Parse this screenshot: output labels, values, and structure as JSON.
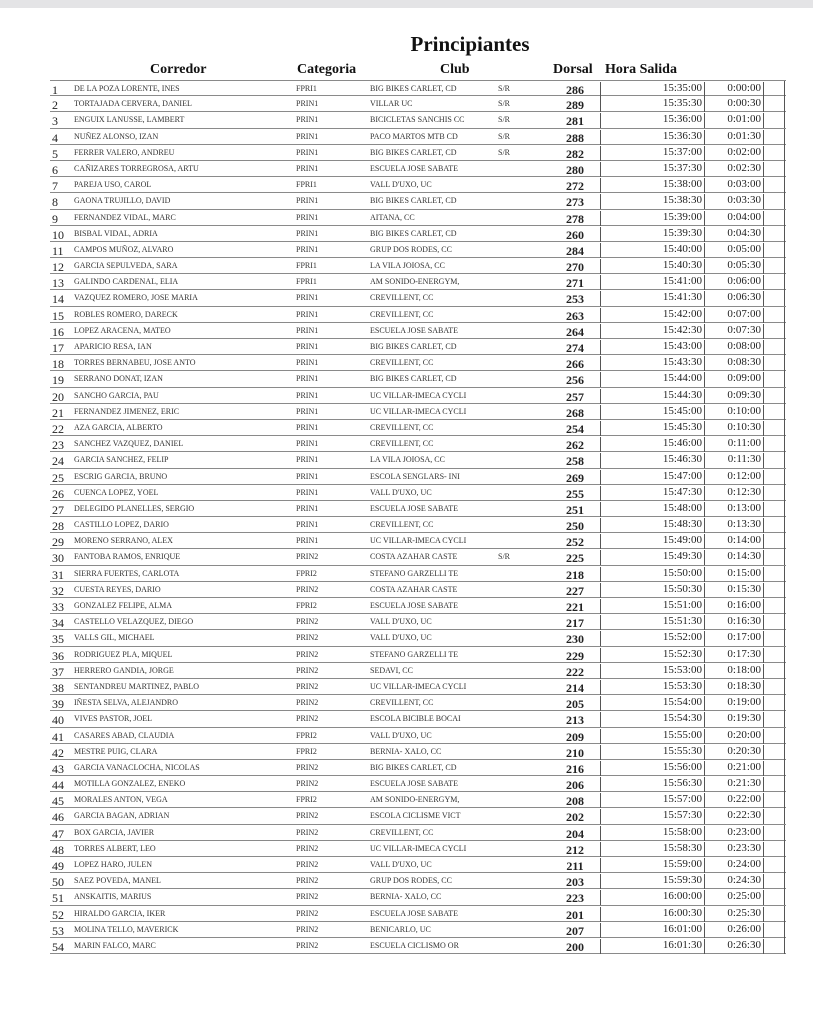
{
  "title": "Principiantes",
  "headers": {
    "corredor": "Corredor",
    "categoria": "Categoria",
    "club": "Club",
    "dorsal": "Dorsal",
    "hora_salida": "Hora Salida"
  },
  "rows": [
    [
      "1",
      "DE LA POZA LORENTE, INES",
      "FPRI1",
      "BIG BIKES CARLET, CD",
      "S/R",
      "286",
      "15:35:00",
      "0:00:00"
    ],
    [
      "2",
      "TORTAJADA CERVERA, DANIEL",
      "PRIN1",
      "VILLAR UC",
      "S/R",
      "289",
      "15:35:30",
      "0:00:30"
    ],
    [
      "3",
      "ENGUIX LANUSSE, LAMBERT",
      "PRIN1",
      "BICICLETAS SANCHIS CC",
      "S/R",
      "281",
      "15:36:00",
      "0:01:00"
    ],
    [
      "4",
      "NUÑEZ ALONSO, IZAN",
      "PRIN1",
      "PACO MARTOS MTB CD",
      "S/R",
      "288",
      "15:36:30",
      "0:01:30"
    ],
    [
      "5",
      "FERRER VALERO, ANDREU",
      "PRIN1",
      "BIG BIKES CARLET, CD",
      "S/R",
      "282",
      "15:37:00",
      "0:02:00"
    ],
    [
      "6",
      "CAÑIZARES TORREGROSA, ARTU",
      "PRIN1",
      "ESCUELA JOSE SABATE",
      "",
      "280",
      "15:37:30",
      "0:02:30"
    ],
    [
      "7",
      "PAREJA USO, CAROL",
      "FPRI1",
      "VALL D'UXO, UC",
      "",
      "272",
      "15:38:00",
      "0:03:00"
    ],
    [
      "8",
      "GAONA TRUJILLO, DAVID",
      "PRIN1",
      "BIG BIKES CARLET, CD",
      "",
      "273",
      "15:38:30",
      "0:03:30"
    ],
    [
      "9",
      "FERNANDEZ VIDAL, MARC",
      "PRIN1",
      "AITANA, CC",
      "",
      "278",
      "15:39:00",
      "0:04:00"
    ],
    [
      "10",
      "BISBAL VIDAL, ADRIA",
      "PRIN1",
      "BIG BIKES CARLET, CD",
      "",
      "260",
      "15:39:30",
      "0:04:30"
    ],
    [
      "11",
      "CAMPOS MUÑOZ, ALVARO",
      "PRIN1",
      "GRUP DOS RODES, CC",
      "",
      "284",
      "15:40:00",
      "0:05:00"
    ],
    [
      "12",
      "GARCIA SEPULVEDA, SARA",
      "FPRI1",
      "LA VILA JOIOSA, CC",
      "",
      "270",
      "15:40:30",
      "0:05:30"
    ],
    [
      "13",
      "GALINDO CARDENAL, ELIA",
      "FPRI1",
      "AM SONIDO-ENERGYM,",
      "",
      "271",
      "15:41:00",
      "0:06:00"
    ],
    [
      "14",
      "VAZQUEZ ROMERO, JOSE MARIA",
      "PRIN1",
      "CREVILLENT, CC",
      "",
      "253",
      "15:41:30",
      "0:06:30"
    ],
    [
      "15",
      "ROBLES ROMERO, DARECK",
      "PRIN1",
      "CREVILLENT, CC",
      "",
      "263",
      "15:42:00",
      "0:07:00"
    ],
    [
      "16",
      "LOPEZ ARACENA, MATEO",
      "PRIN1",
      "ESCUELA JOSE SABATE",
      "",
      "264",
      "15:42:30",
      "0:07:30"
    ],
    [
      "17",
      "APARICIO RESA, IAN",
      "PRIN1",
      "BIG BIKES CARLET, CD",
      "",
      "274",
      "15:43:00",
      "0:08:00"
    ],
    [
      "18",
      "TORRES BERNABEU, JOSE ANTO",
      "PRIN1",
      "CREVILLENT, CC",
      "",
      "266",
      "15:43:30",
      "0:08:30"
    ],
    [
      "19",
      "SERRANO DONAT, IZAN",
      "PRIN1",
      "BIG BIKES CARLET, CD",
      "",
      "256",
      "15:44:00",
      "0:09:00"
    ],
    [
      "20",
      "SANCHO GARCIA, PAU",
      "PRIN1",
      "UC VILLAR-IMECA CYCLI",
      "",
      "257",
      "15:44:30",
      "0:09:30"
    ],
    [
      "21",
      "FERNANDEZ JIMENEZ, ERIC",
      "PRIN1",
      "UC VILLAR-IMECA CYCLI",
      "",
      "268",
      "15:45:00",
      "0:10:00"
    ],
    [
      "22",
      "AZA GARCIA, ALBERTO",
      "PRIN1",
      "CREVILLENT, CC",
      "",
      "254",
      "15:45:30",
      "0:10:30"
    ],
    [
      "23",
      "SANCHEZ VAZQUEZ, DANIEL",
      "PRIN1",
      "CREVILLENT, CC",
      "",
      "262",
      "15:46:00",
      "0:11:00"
    ],
    [
      "24",
      "GARCIA SANCHEZ, FELIP",
      "PRIN1",
      "LA VILA JOIOSA, CC",
      "",
      "258",
      "15:46:30",
      "0:11:30"
    ],
    [
      "25",
      "ESCRIG GARCIA, BRUNO",
      "PRIN1",
      "ESCOLA SENGLARS- INI",
      "",
      "269",
      "15:47:00",
      "0:12:00"
    ],
    [
      "26",
      "CUENCA LOPEZ, YOEL",
      "PRIN1",
      "VALL D'UXO, UC",
      "",
      "255",
      "15:47:30",
      "0:12:30"
    ],
    [
      "27",
      "DELEGIDO PLANELLES, SERGIO",
      "PRIN1",
      "ESCUELA JOSE SABATE",
      "",
      "251",
      "15:48:00",
      "0:13:00"
    ],
    [
      "28",
      "CASTILLO LOPEZ, DARIO",
      "PRIN1",
      "CREVILLENT, CC",
      "",
      "250",
      "15:48:30",
      "0:13:30"
    ],
    [
      "29",
      "MORENO SERRANO, ALEX",
      "PRIN1",
      "UC VILLAR-IMECA CYCLI",
      "",
      "252",
      "15:49:00",
      "0:14:00"
    ],
    [
      "30",
      "FANTOBA RAMOS, ENRIQUE",
      "PRIN2",
      "COSTA AZAHAR CASTE",
      "S/R",
      "225",
      "15:49:30",
      "0:14:30"
    ],
    [
      "31",
      "SIERRA FUERTES, CARLOTA",
      "FPRI2",
      "STEFANO GARZELLI TE",
      "",
      "218",
      "15:50:00",
      "0:15:00"
    ],
    [
      "32",
      "CUESTA REYES, DARIO",
      "PRIN2",
      "COSTA AZAHAR CASTE",
      "",
      "227",
      "15:50:30",
      "0:15:30"
    ],
    [
      "33",
      "GONZALEZ FELIPE, ALMA",
      "FPRI2",
      "ESCUELA JOSE SABATE",
      "",
      "221",
      "15:51:00",
      "0:16:00"
    ],
    [
      "34",
      "CASTELLO VELAZQUEZ, DIEGO",
      "PRIN2",
      "VALL D'UXO, UC",
      "",
      "217",
      "15:51:30",
      "0:16:30"
    ],
    [
      "35",
      "VALLS GIL, MICHAEL",
      "PRIN2",
      "VALL D'UXO, UC",
      "",
      "230",
      "15:52:00",
      "0:17:00"
    ],
    [
      "36",
      "RODRIGUEZ PLA, MIQUEL",
      "PRIN2",
      "STEFANO GARZELLI TE",
      "",
      "229",
      "15:52:30",
      "0:17:30"
    ],
    [
      "37",
      "HERRERO GANDIA, JORGE",
      "PRIN2",
      "SEDAVI, CC",
      "",
      "222",
      "15:53:00",
      "0:18:00"
    ],
    [
      "38",
      "SENTANDREU MARTINEZ, PABLO",
      "PRIN2",
      "UC VILLAR-IMECA CYCLI",
      "",
      "214",
      "15:53:30",
      "0:18:30"
    ],
    [
      "39",
      "IÑESTA SELVA, ALEJANDRO",
      "PRIN2",
      "CREVILLENT, CC",
      "",
      "205",
      "15:54:00",
      "0:19:00"
    ],
    [
      "40",
      "VIVES PASTOR, JOEL",
      "PRIN2",
      "ESCOLA BICIBLE BOCAI",
      "",
      "213",
      "15:54:30",
      "0:19:30"
    ],
    [
      "41",
      "CASARES ABAD, CLAUDIA",
      "FPRI2",
      "VALL D'UXO, UC",
      "",
      "209",
      "15:55:00",
      "0:20:00"
    ],
    [
      "42",
      "MESTRE PUIG, CLARA",
      "FPRI2",
      "BERNIA- XALO, CC",
      "",
      "210",
      "15:55:30",
      "0:20:30"
    ],
    [
      "43",
      "GARCIA VANACLOCHA, NICOLAS",
      "PRIN2",
      "BIG BIKES CARLET, CD",
      "",
      "216",
      "15:56:00",
      "0:21:00"
    ],
    [
      "44",
      "MOTILLA GONZALEZ, ENEKO",
      "PRIN2",
      "ESCUELA JOSE SABATE",
      "",
      "206",
      "15:56:30",
      "0:21:30"
    ],
    [
      "45",
      "MORALES ANTON, VEGA",
      "FPRI2",
      "AM SONIDO-ENERGYM,",
      "",
      "208",
      "15:57:00",
      "0:22:00"
    ],
    [
      "46",
      "GARCIA BAGAN, ADRIAN",
      "PRIN2",
      "ESCOLA CICLISME VICT",
      "",
      "202",
      "15:57:30",
      "0:22:30"
    ],
    [
      "47",
      "BOX GARCIA, JAVIER",
      "PRIN2",
      "CREVILLENT, CC",
      "",
      "204",
      "15:58:00",
      "0:23:00"
    ],
    [
      "48",
      "TORRES ALBERT, LEO",
      "PRIN2",
      "UC VILLAR-IMECA CYCLI",
      "",
      "212",
      "15:58:30",
      "0:23:30"
    ],
    [
      "49",
      "LOPEZ HARO, JULEN",
      "PRIN2",
      "VALL D'UXO, UC",
      "",
      "211",
      "15:59:00",
      "0:24:00"
    ],
    [
      "50",
      "SAEZ POVEDA, MANEL",
      "PRIN2",
      "GRUP DOS RODES, CC",
      "",
      "203",
      "15:59:30",
      "0:24:30"
    ],
    [
      "51",
      "ANSKAITIS, MARIUS",
      "PRIN2",
      "BERNIA- XALO, CC",
      "",
      "223",
      "16:00:00",
      "0:25:00"
    ],
    [
      "52",
      "HIRALDO GARCIA, IKER",
      "PRIN2",
      "ESCUELA JOSE SABATE",
      "",
      "201",
      "16:00:30",
      "0:25:30"
    ],
    [
      "53",
      "MOLINA TELLO, MAVERICK",
      "PRIN2",
      "BENICARLO, UC",
      "",
      "207",
      "16:01:00",
      "0:26:00"
    ],
    [
      "54",
      "MARIN FALCO, MARC",
      "PRIN2",
      "ESCUELA CICLISMO OR",
      "",
      "200",
      "16:01:30",
      "0:26:30"
    ]
  ]
}
